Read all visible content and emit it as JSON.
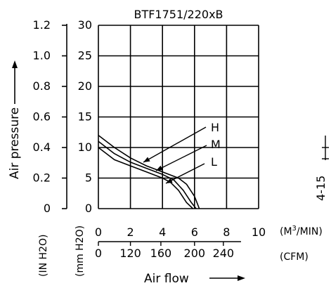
{
  "chart_data": {
    "type": "line",
    "title": "BTF1751/220xB",
    "ylabel": "Air pressure",
    "y_unit_left": "(IN H2O)",
    "y_unit_right": "(mm H2O)",
    "xlabel": "Air flow",
    "x_unit_primary": "(M3/MIN)",
    "x_unit_secondary": "(CFM)",
    "side_label": "4-15",
    "xlim": [
      0,
      10
    ],
    "ylim": [
      0,
      30
    ],
    "y_ticks_mm": [
      "0",
      "5",
      "10",
      "15",
      "20",
      "25",
      "30"
    ],
    "y_ticks_in": [
      "0",
      "0.2",
      "0.4",
      "0.6",
      "0.8",
      "1.0",
      "1.2"
    ],
    "x_ticks_m3": [
      "0",
      "2",
      "4",
      "6",
      "8",
      "10"
    ],
    "x_ticks_cfm": [
      "0",
      "120",
      "160",
      "200",
      "240"
    ],
    "grid": true,
    "series": [
      {
        "name": "H",
        "x": [
          0,
          1,
          2,
          3,
          4,
          5,
          5.5,
          6,
          6.3
        ],
        "y": [
          12,
          10,
          8.3,
          7,
          6,
          5,
          4,
          2,
          0
        ]
      },
      {
        "name": "M",
        "x": [
          0,
          1,
          2,
          3,
          4,
          4.7,
          5.3,
          5.8,
          6.1
        ],
        "y": [
          11,
          9,
          7.6,
          6.6,
          5.6,
          4.7,
          3,
          1,
          0
        ]
      },
      {
        "name": "L",
        "x": [
          0,
          1,
          2,
          3,
          4,
          4.5,
          5,
          5.5,
          5.9
        ],
        "y": [
          10,
          8,
          7,
          6,
          5,
          4.3,
          3,
          1,
          0
        ]
      }
    ]
  }
}
